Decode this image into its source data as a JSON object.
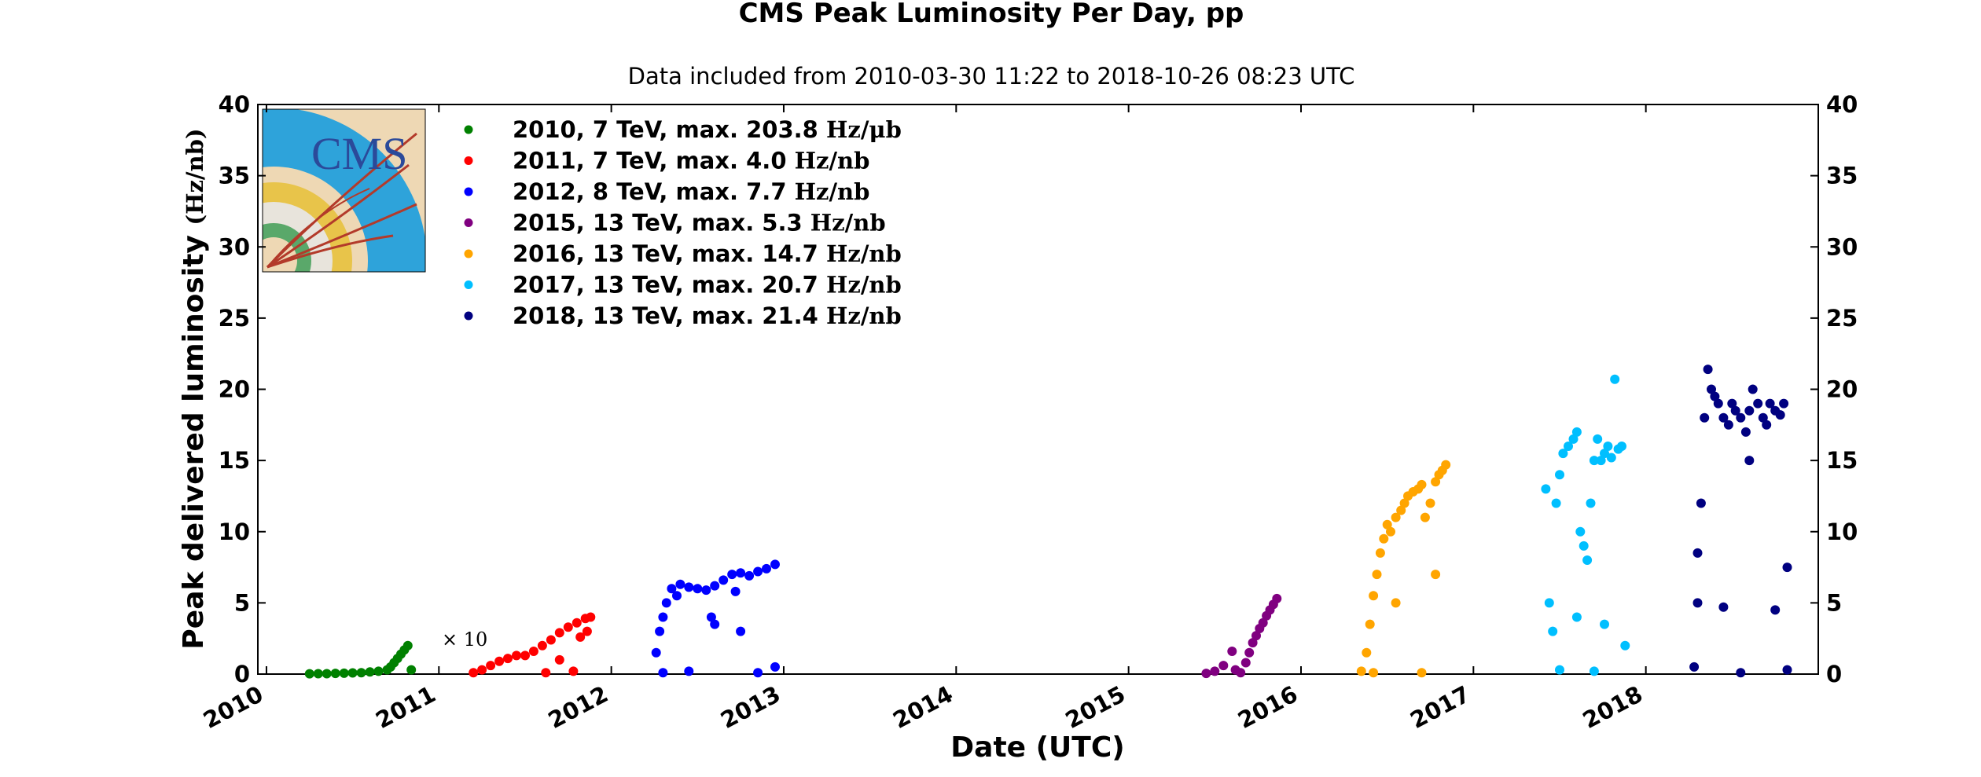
{
  "chart_data": {
    "type": "scatter",
    "title": "CMS Peak Luminosity Per Day, pp",
    "subtitle": "Data included from 2010-03-30 11:22 to 2018-10-26 08:23 UTC",
    "xlabel": "Date (UTC)",
    "ylabel": "Peak delivered luminosity",
    "ylabel_unit": "(Hz/nb)",
    "xlim": [
      2009.95,
      2019.0
    ],
    "ylim": [
      0,
      40
    ],
    "x_ticks": [
      2010,
      2011,
      2012,
      2013,
      2014,
      2015,
      2016,
      2017,
      2018
    ],
    "x_tick_labels": [
      "2010",
      "2011",
      "2012",
      "2013",
      "2014",
      "2015",
      "2016",
      "2017",
      "2018"
    ],
    "y_ticks": [
      0,
      5,
      10,
      15,
      20,
      25,
      30,
      35,
      40
    ],
    "y_tick_labels": [
      "0",
      "5",
      "10",
      "15",
      "20",
      "25",
      "30",
      "35",
      "40"
    ],
    "grid": false,
    "legend_position": "top-left",
    "annotation": "× 10",
    "series": [
      {
        "name": "2010, 7 TeV, max. 203.8",
        "unit": "Hz/μb",
        "color": "#008000",
        "x": [
          2010.25,
          2010.3,
          2010.35,
          2010.4,
          2010.45,
          2010.5,
          2010.55,
          2010.6,
          2010.65,
          2010.7,
          2010.72,
          2010.74,
          2010.76,
          2010.78,
          2010.8,
          2010.82,
          2010.84
        ],
        "y": [
          0.02,
          0.03,
          0.03,
          0.05,
          0.06,
          0.08,
          0.1,
          0.15,
          0.2,
          0.3,
          0.5,
          0.8,
          1.1,
          1.4,
          1.7,
          2.0,
          0.3
        ]
      },
      {
        "name": "2011, 7 TeV, max. 4.0",
        "unit": "Hz/nb",
        "color": "#ff0000",
        "x": [
          2011.2,
          2011.25,
          2011.3,
          2011.35,
          2011.4,
          2011.45,
          2011.5,
          2011.55,
          2011.6,
          2011.65,
          2011.7,
          2011.75,
          2011.8,
          2011.85,
          2011.88,
          2011.62,
          2011.7,
          2011.78,
          2011.82,
          2011.86
        ],
        "y": [
          0.1,
          0.3,
          0.6,
          0.9,
          1.1,
          1.3,
          1.3,
          1.6,
          2.0,
          2.4,
          2.9,
          3.3,
          3.6,
          3.9,
          4.0,
          0.1,
          1.0,
          0.2,
          2.6,
          3.0
        ]
      },
      {
        "name": "2012, 8 TeV, max. 7.7",
        "unit": "Hz/nb",
        "color": "#0000ff",
        "x": [
          2012.26,
          2012.28,
          2012.3,
          2012.32,
          2012.35,
          2012.4,
          2012.45,
          2012.5,
          2012.55,
          2012.6,
          2012.65,
          2012.7,
          2012.75,
          2012.8,
          2012.85,
          2012.9,
          2012.95,
          2012.3,
          2012.45,
          2012.6,
          2012.75,
          2012.85,
          2012.95,
          2012.38,
          2012.58,
          2012.72
        ],
        "y": [
          1.5,
          3.0,
          4.0,
          5.0,
          6.0,
          6.3,
          6.1,
          6.0,
          5.9,
          6.2,
          6.6,
          7.0,
          7.1,
          6.9,
          7.2,
          7.4,
          7.7,
          0.1,
          0.2,
          3.5,
          3.0,
          0.1,
          0.5,
          5.5,
          4.0,
          5.8
        ]
      },
      {
        "name": "2015, 13 TeV, max. 5.3",
        "unit": "Hz/nb",
        "color": "#800080",
        "x": [
          2015.45,
          2015.5,
          2015.55,
          2015.6,
          2015.62,
          2015.65,
          2015.68,
          2015.7,
          2015.72,
          2015.74,
          2015.76,
          2015.78,
          2015.8,
          2015.82,
          2015.84,
          2015.86
        ],
        "y": [
          0.05,
          0.2,
          0.6,
          1.6,
          0.3,
          0.1,
          0.8,
          1.5,
          2.2,
          2.7,
          3.2,
          3.6,
          4.1,
          4.5,
          4.9,
          5.3
        ]
      },
      {
        "name": "2016, 13 TeV, max. 14.7",
        "unit": "Hz/nb",
        "color": "#ffa500",
        "x": [
          2016.35,
          2016.38,
          2016.4,
          2016.42,
          2016.44,
          2016.46,
          2016.48,
          2016.5,
          2016.52,
          2016.55,
          2016.58,
          2016.6,
          2016.62,
          2016.65,
          2016.68,
          2016.7,
          2016.72,
          2016.75,
          2016.78,
          2016.8,
          2016.82,
          2016.84,
          2016.42,
          2016.55,
          2016.7,
          2016.78
        ],
        "y": [
          0.2,
          1.5,
          3.5,
          5.5,
          7.0,
          8.5,
          9.5,
          10.5,
          10.0,
          11.0,
          11.5,
          12.0,
          12.5,
          12.8,
          13.0,
          13.3,
          11.0,
          12.0,
          13.5,
          14.0,
          14.3,
          14.7,
          0.1,
          5.0,
          0.1,
          7.0
        ]
      },
      {
        "name": "2017, 13 TeV, max. 20.7",
        "unit": "Hz/nb",
        "color": "#00bfff",
        "x": [
          2017.42,
          2017.44,
          2017.46,
          2017.48,
          2017.5,
          2017.52,
          2017.55,
          2017.58,
          2017.6,
          2017.62,
          2017.64,
          2017.66,
          2017.68,
          2017.7,
          2017.72,
          2017.74,
          2017.76,
          2017.78,
          2017.8,
          2017.82,
          2017.84,
          2017.86,
          2017.88,
          2017.5,
          2017.6,
          2017.7,
          2017.76
        ],
        "y": [
          13.0,
          5.0,
          3.0,
          12.0,
          14.0,
          15.5,
          16.0,
          16.5,
          17.0,
          10.0,
          9.0,
          8.0,
          12.0,
          15.0,
          16.5,
          15.0,
          15.5,
          16.0,
          15.2,
          20.7,
          15.8,
          16.0,
          2.0,
          0.3,
          4.0,
          0.2,
          3.5
        ]
      },
      {
        "name": "2018, 13 TeV, max. 21.4",
        "unit": "Hz/nb",
        "color": "#000080",
        "x": [
          2018.28,
          2018.3,
          2018.32,
          2018.34,
          2018.36,
          2018.38,
          2018.4,
          2018.42,
          2018.45,
          2018.48,
          2018.5,
          2018.52,
          2018.55,
          2018.58,
          2018.6,
          2018.62,
          2018.65,
          2018.68,
          2018.7,
          2018.72,
          2018.75,
          2018.78,
          2018.8,
          2018.82,
          2018.3,
          2018.45,
          2018.55,
          2018.6,
          2018.75,
          2018.82
        ],
        "y": [
          0.5,
          5.0,
          12.0,
          18.0,
          21.4,
          20.0,
          19.5,
          19.0,
          18.0,
          17.5,
          19.0,
          18.5,
          18.0,
          17.0,
          18.5,
          20.0,
          19.0,
          18.0,
          17.5,
          19.0,
          18.5,
          18.2,
          19.0,
          7.5,
          8.5,
          4.7,
          0.1,
          15.0,
          4.5,
          0.3
        ]
      }
    ]
  }
}
